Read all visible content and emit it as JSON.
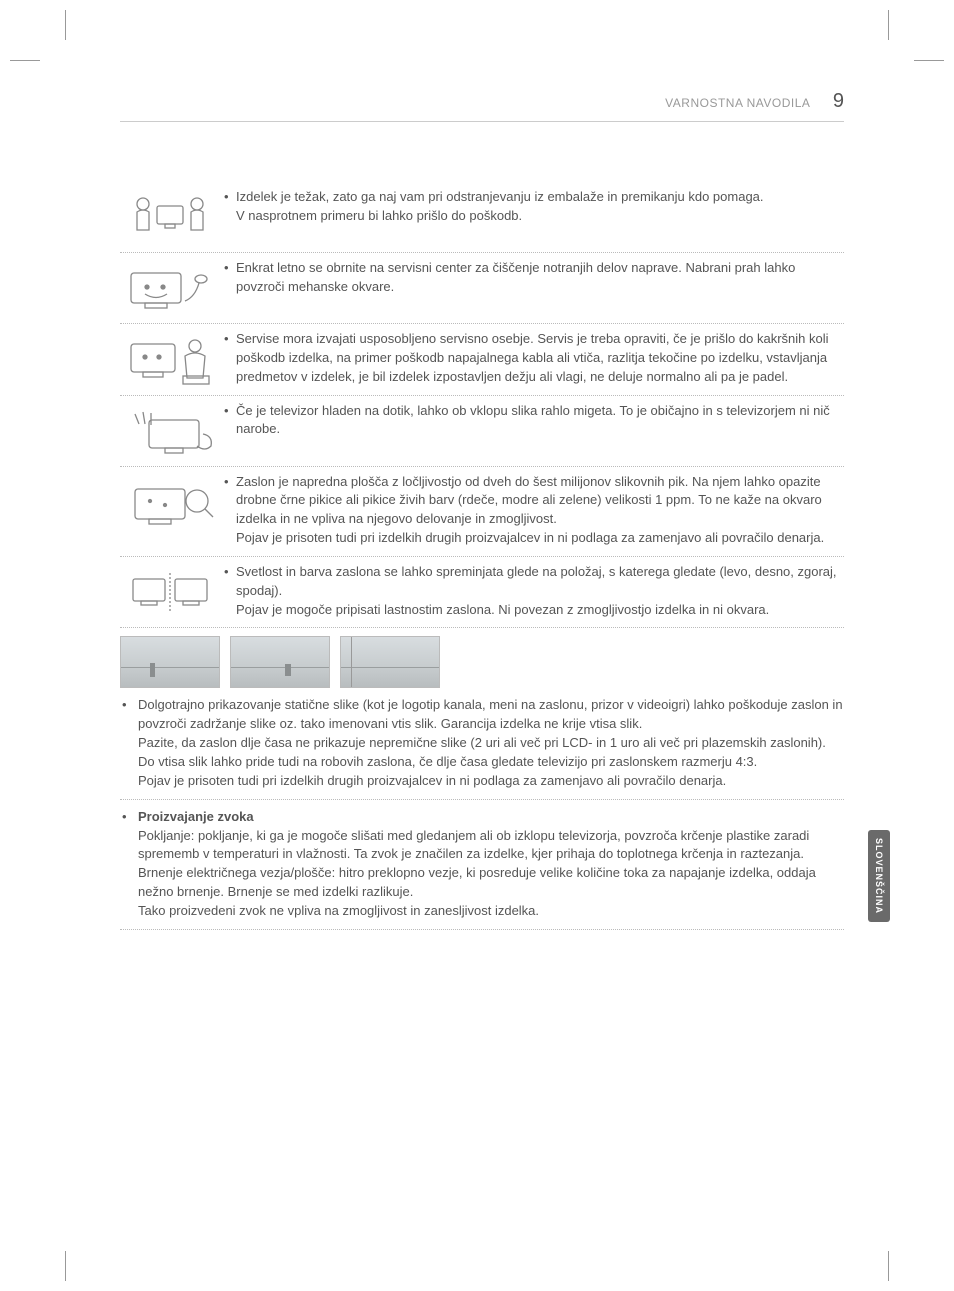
{
  "header": {
    "section_title": "VARNOSTNA NAVODILA",
    "page_number": "9"
  },
  "language_tab": "SLOVENŠČINA",
  "rows": [
    {
      "icon": "two-people-tv",
      "paragraphs": [
        "Izdelek je težak, zato ga naj vam pri odstranjevanju iz embalaže in premikanju kdo pomaga.\nV nasprotnem primeru bi lahko prišlo do poškodb."
      ]
    },
    {
      "icon": "tv-happy-vacuum",
      "paragraphs": [
        "Enkrat letno se obrnite na servisni center za čiščenje notranjih delov naprave. Nabrani prah lahko povzroči mehanske okvare."
      ]
    },
    {
      "icon": "tv-technician",
      "paragraphs": [
        "Servise mora izvajati usposobljeno servisno osebje.  Servis je treba opraviti, če je prišlo do kakršnih koli poškodb izdelka, na primer poškodb napajalnega kabla ali vtiča, razlitja tekočine po izdelku, vstavljanja predmetov v izdelek, je bil izdelek izpostavljen dežju ali vlagi, ne deluje normalno ali pa je padel."
      ]
    },
    {
      "icon": "tv-cold-hand",
      "paragraphs": [
        "Če je televizor hladen na dotik, lahko ob vklopu slika rahlo migeta. To je običajno in s televizorjem ni nič narobe."
      ]
    },
    {
      "icon": "tv-pixels-magnify",
      "paragraphs": [
        "Zaslon je napredna plošča z ločljivostjo od dveh do šest milijonov slikovnih pik. Na njem lahko opazite drobne črne pikice ali pikice živih barv (rdeče, modre ali zelene) velikosti 1 ppm. To ne kaže na okvaro izdelka in ne vpliva na njegovo delovanje in zmogljivost.\nPojav je prisoten tudi pri izdelkih drugih proizvajalcev in ni podlaga za zamenjavo ali povračilo denarja."
      ]
    },
    {
      "icon": "two-tvs-angle",
      "paragraphs": [
        "Svetlost in barva zaslona se lahko spreminjata glede na položaj, s katerega gledate (levo, desno, zgoraj, spodaj).\nPojav je mogoče pripisati lastnostim zaslona. Ni povezan z zmogljivostjo izdelka in ni okvara."
      ]
    }
  ],
  "lower_items": [
    {
      "type": "plain",
      "text": "Dolgotrajno prikazovanje statične slike (kot je logotip kanala, meni na zaslonu, prizor v videoigri) lahko poškoduje zaslon in povzroči zadržanje slike oz. tako imenovani vtis slik. Garancija izdelka ne krije vtisa slik.\nPazite, da zaslon dlje časa ne prikazuje nepremične slike (2 uri ali več pri LCD- in 1 uro ali več pri plazemskih zaslonih).\nDo vtisa slik lahko pride tudi na robovih zaslona, če dlje časa gledate televizijo pri zaslonskem razmerju 4:3.\nPojav je prisoten tudi pri izdelkih drugih proizvajalcev in ni podlaga za zamenjavo ali povračilo denarja."
    },
    {
      "type": "bold",
      "label": "Proizvajanje zvoka",
      "text": "Pokljanje: pokljanje, ki ga je mogoče slišati med gledanjem ali ob izklopu televizorja, povzroča krčenje plastike zaradi sprememb v temperaturi in vlažnosti. Ta zvok je značilen za izdelke, kjer prihaja do toplotnega krčenja in raztezanja. Brnenje električnega vezja/plošče: hitro preklopno vezje, ki posreduje velike količine toka za napajanje izdelka, oddaja nežno brnenje. Brnenje se med izdelki razlikuje.\nTako proizvedeni zvok ne vpliva na zmogljivost in zanesljivost izdelka."
    }
  ]
}
